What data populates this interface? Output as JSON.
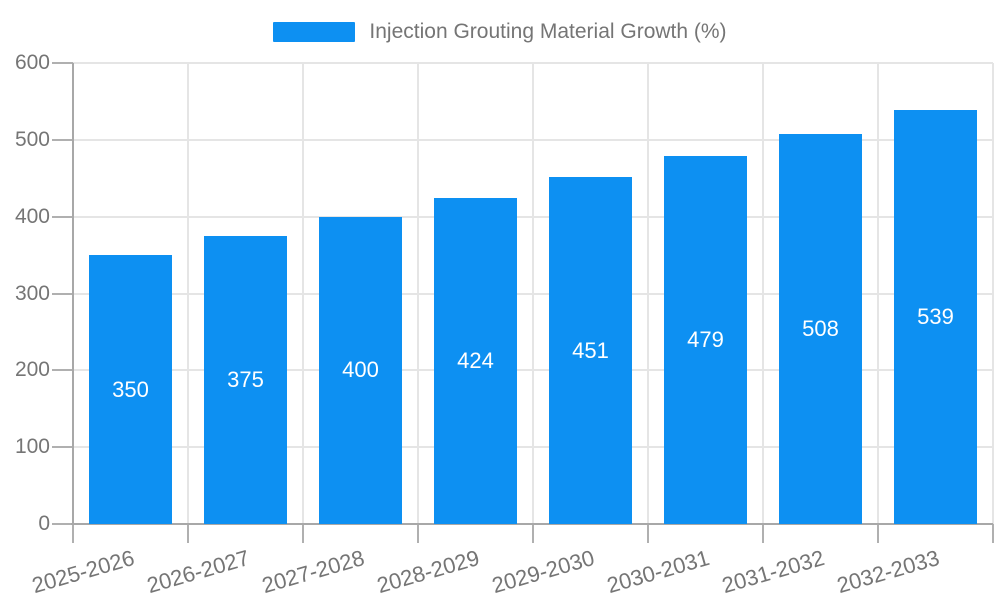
{
  "chart_data": {
    "type": "bar",
    "title": "Injection Grouting Material Growth (%)",
    "categories": [
      "2025-2026",
      "2026-2027",
      "2027-2028",
      "2028-2029",
      "2029-2030",
      "2030-2031",
      "2031-2032",
      "2032-2033"
    ],
    "values": [
      350,
      375,
      400,
      424,
      451,
      479,
      508,
      539
    ],
    "series": [
      {
        "name": "Injection Grouting Material Growth (%)",
        "values": [
          350,
          375,
          400,
          424,
          451,
          479,
          508,
          539
        ]
      }
    ],
    "xlabel": "",
    "ylabel": "",
    "ylim": [
      0,
      600
    ],
    "yticks": [
      0,
      100,
      200,
      300,
      400,
      500,
      600
    ],
    "grid": true,
    "legend_position": "top-center",
    "value_labels": "inside-center",
    "x_label_rotation_deg": -16
  },
  "legend": {
    "label": "Injection Grouting Material Growth (%)"
  },
  "colors": {
    "bar": "#0D90F2",
    "grid": "#E5E5E5",
    "axis": "#A8A8A8",
    "tick": "#B0B0B0",
    "label_text": "#757575",
    "value_text": "#FFFFFF",
    "background": "#FFFFFF"
  }
}
